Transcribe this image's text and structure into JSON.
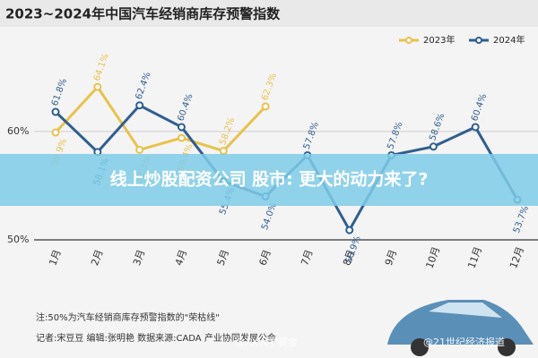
{
  "chart_data": {
    "type": "line",
    "title": "2023~2024年中国汽车经销商库存预警指数",
    "categories": [
      "1月",
      "2月",
      "3月",
      "4月",
      "5月",
      "6月",
      "7月",
      "8月",
      "9月",
      "10月",
      "11月",
      "12月"
    ],
    "series": [
      {
        "name": "2023年",
        "color": "#e8c24a",
        "values": [
          59.9,
          64.1,
          58.3,
          59.4,
          58.2,
          62.3,
          null,
          null,
          null,
          null,
          null,
          null
        ],
        "value_labels": [
          "59.9%",
          "64.1%",
          "58.3%",
          "59.4%",
          "58.2%",
          "62.3%",
          null,
          null,
          null,
          null,
          null,
          null
        ]
      },
      {
        "name": "2024年",
        "color": "#2f5f8f",
        "values": [
          61.8,
          58.1,
          62.4,
          60.4,
          55.4,
          54.0,
          57.8,
          50.9,
          57.8,
          58.6,
          60.4,
          53.7
        ],
        "value_labels": [
          "61.8%",
          "58.1%",
          "62.4%",
          "60.4%",
          "55.4%",
          "54.0%",
          "57.8%",
          "50.9%",
          "57.8%",
          "58.6%",
          "60.4%",
          "53.7%"
        ]
      }
    ],
    "ylim": [
      50,
      67
    ],
    "yticks": [
      {
        "value": 50,
        "label": "50%"
      },
      {
        "value": 60,
        "label": "60%"
      }
    ],
    "legend": "top-right",
    "banner": "线上炒股配资公司 股市: 更大的动力来了?",
    "notes": [
      "注:50%为汽车经销商库存预警指数的\"荣枯线\"",
      "记者:宋豆豆   编辑:张明艳   数据来源:CADA 产业协同发展公会"
    ],
    "watermarks": [
      "@XX大学黄金",
      "@21世纪经济报道"
    ]
  }
}
